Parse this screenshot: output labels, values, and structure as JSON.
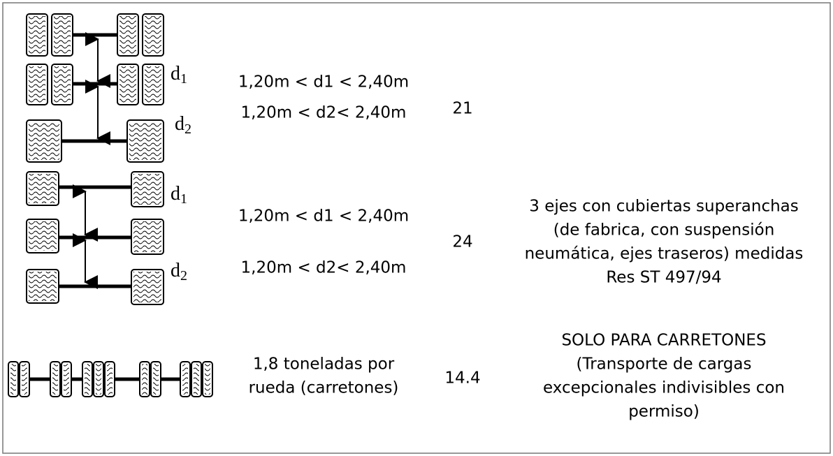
{
  "table": {
    "rows": [
      {
        "labels": [
          {
            "d": "d",
            "sub": "1"
          },
          {
            "d": "d",
            "sub": "2"
          }
        ],
        "condition": [
          "1,20m < d1 < 2,40m",
          "1,20m < d2< 2,40m"
        ],
        "value": 21,
        "description": []
      },
      {
        "labels": [
          {
            "d": "d",
            "sub": "1"
          },
          {
            "d": "d",
            "sub": "2"
          }
        ],
        "condition": [
          "1,20m < d1 < 2,40m",
          "1,20m < d2< 2,40m"
        ],
        "value": 24,
        "description": [
          "3 ejes con cubiertas superanchas",
          "(de fabrica, con suspensión",
          "neumática, ejes traseros) medidas",
          "Res ST 497/94"
        ]
      },
      {
        "labels": [],
        "condition": [
          "1,8 toneladas por",
          "rueda (carretones)"
        ],
        "value": 14.4,
        "description": [
          "SOLO PARA CARRETONES",
          "(Transporte de cargas",
          "excepcionales indivisibles con",
          "permiso)"
        ]
      }
    ]
  }
}
